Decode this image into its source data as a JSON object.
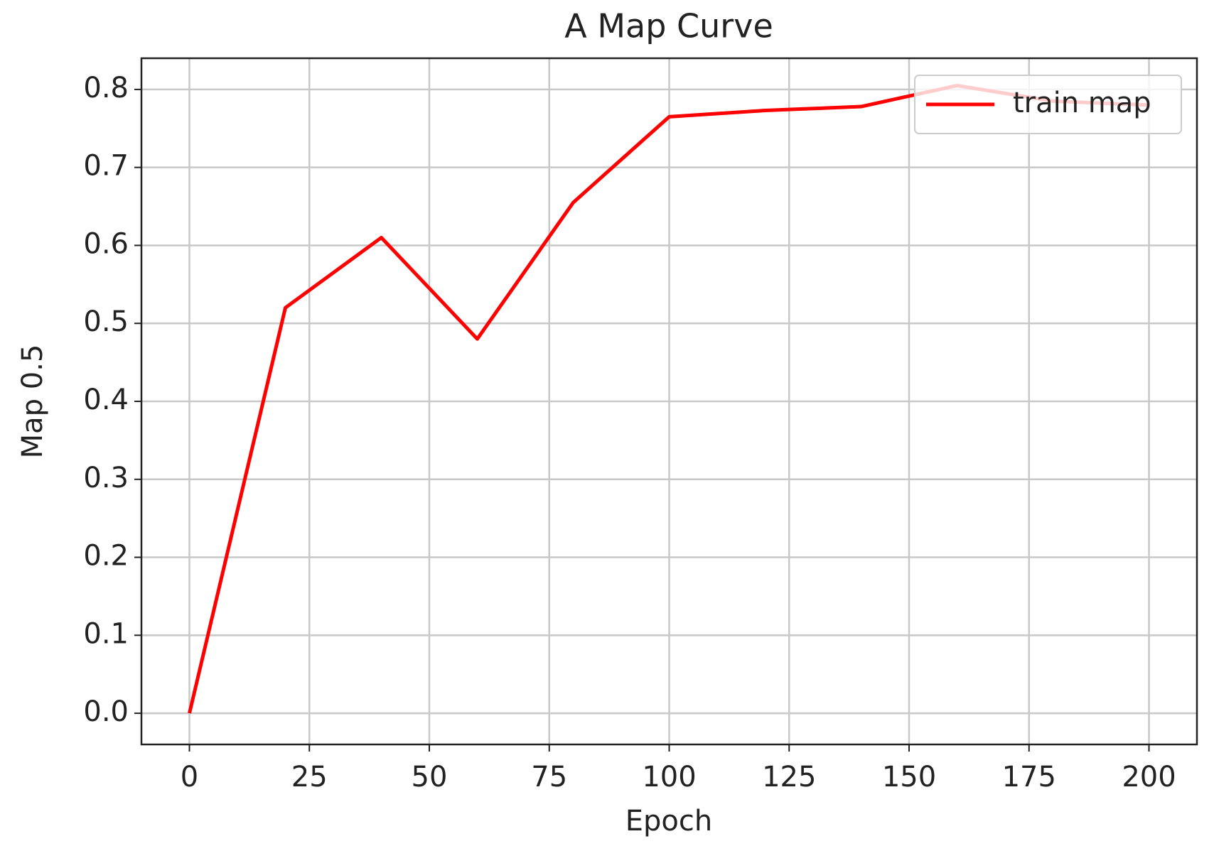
{
  "chart_data": {
    "type": "line",
    "title": "A Map Curve",
    "x_label": "Epoch",
    "y_label": "Map 0.5",
    "x": [
      0,
      20,
      40,
      60,
      80,
      100,
      120,
      140,
      160,
      180,
      200
    ],
    "series": [
      {
        "name": "train map",
        "color": "#ff0000",
        "values": [
          0.0,
          0.52,
          0.61,
          0.48,
          0.655,
          0.765,
          0.773,
          0.778,
          0.805,
          0.785,
          0.78
        ]
      }
    ],
    "xlim": [
      -10,
      210
    ],
    "xticks": [
      0,
      25,
      50,
      75,
      100,
      125,
      150,
      175,
      200
    ],
    "ylim": [
      -0.04,
      0.84
    ],
    "yticks": [
      {
        "value": 0,
        "label": "0.0"
      },
      0.1,
      0.2,
      0.3,
      0.4,
      0.5,
      0.6,
      0.7,
      0.8
    ],
    "grid": true,
    "legend": "upper right"
  }
}
